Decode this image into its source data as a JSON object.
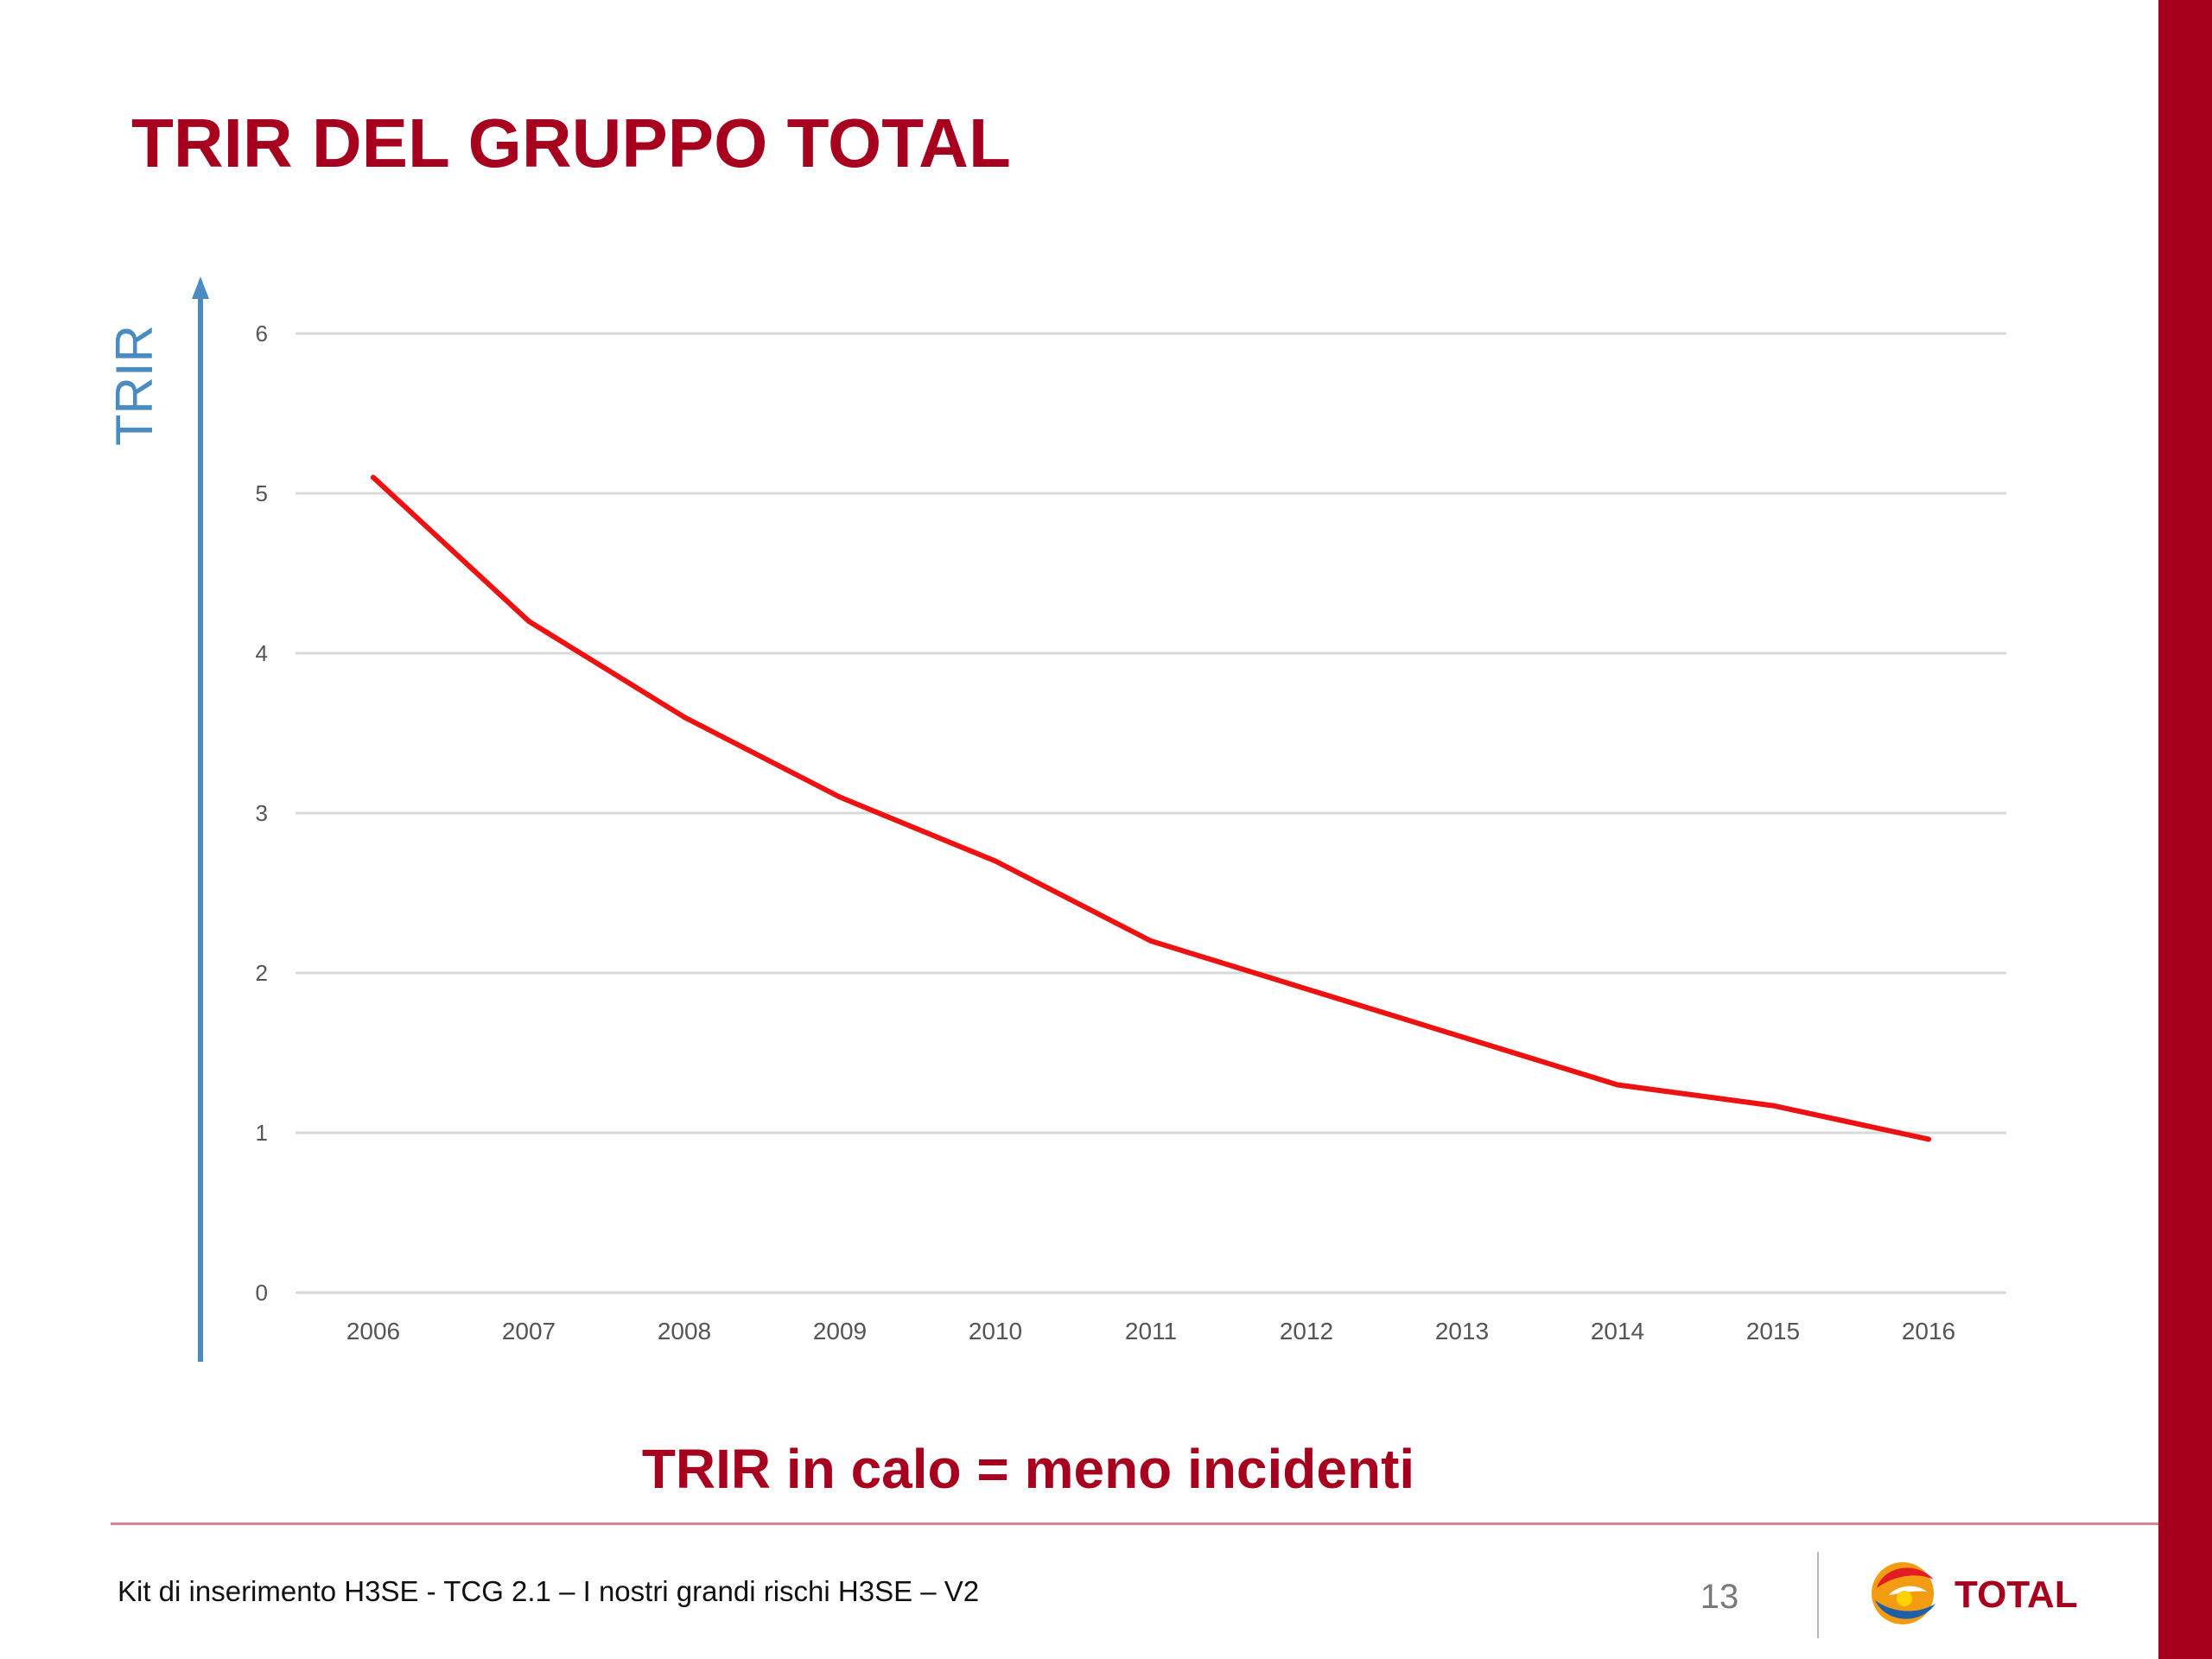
{
  "slide": {
    "title": "TRIR DEL GRUPPO TOTAL",
    "caption": "TRIR in calo = meno incidenti",
    "footer_text": "Kit di inserimento H3SE - TCG 2.1 – I nostri grandi rischi H3SE – V2",
    "page_number": "13",
    "logo_text": "TOTAL"
  },
  "colors": {
    "title": "#a6001e",
    "side_bar": "#a6001e",
    "series_line": "#ee1111",
    "axis_arrow": "#4a8cc2",
    "gridline": "#d9d9d9",
    "tick_label": "#555555",
    "footer_rule": "#d8868f"
  },
  "chart_data": {
    "type": "line",
    "ylabel": "TRIR",
    "x": [
      "2006",
      "2007",
      "2008",
      "2009",
      "2010",
      "2011",
      "2012",
      "2013",
      "2014",
      "2015",
      "2016"
    ],
    "y_ticks": [
      "0",
      "1",
      "2",
      "3",
      "4",
      "5",
      "6"
    ],
    "ylim": [
      0,
      6
    ],
    "grid": true,
    "series": [
      {
        "values": [
          5.1,
          4.2,
          3.6,
          3.1,
          2.7,
          2.2,
          1.9,
          1.6,
          1.3,
          1.17,
          0.96
        ]
      }
    ]
  }
}
